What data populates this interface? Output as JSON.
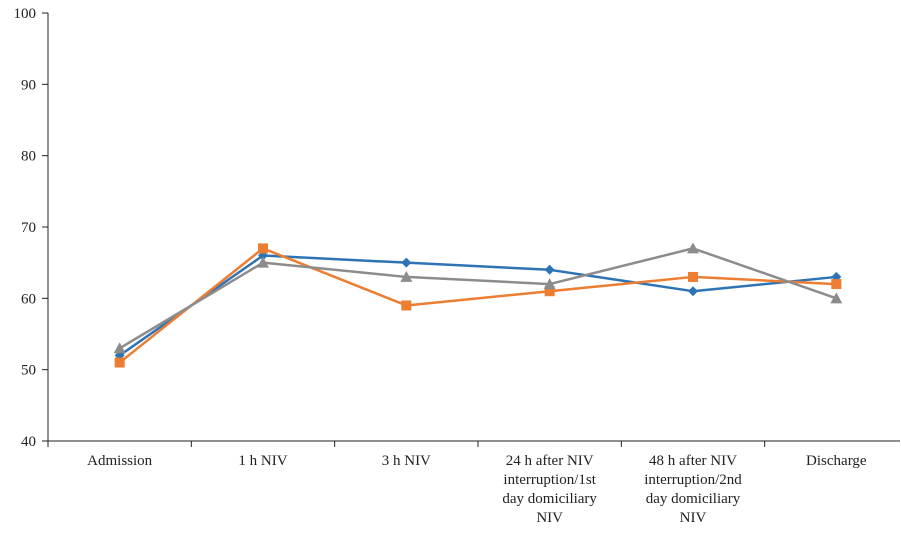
{
  "chart_data": {
    "type": "line",
    "categories": [
      [
        "Admission"
      ],
      [
        "1 h NIV"
      ],
      [
        "3 h NIV"
      ],
      [
        "24 h after NIV",
        "interruption/1st",
        "day domiciliary",
        "NIV"
      ],
      [
        "48 h after NIV",
        "interruption/2nd",
        "day domiciliary",
        "NIV"
      ],
      [
        "Discharge"
      ]
    ],
    "ylim": [
      40,
      100
    ],
    "yticks": [
      40,
      50,
      60,
      70,
      80,
      90,
      100
    ],
    "grid": false,
    "legend": "none",
    "series": [
      {
        "color": "#2E74B5",
        "marker": "diamond",
        "values": [
          52,
          66,
          65,
          64,
          61,
          63
        ]
      },
      {
        "color": "#ED7D31",
        "marker": "square",
        "values": [
          51,
          67,
          59,
          61,
          63,
          62
        ]
      },
      {
        "color": "#8C8C8C",
        "marker": "triangle",
        "values": [
          53,
          65,
          63,
          62,
          67,
          60
        ]
      }
    ]
  }
}
